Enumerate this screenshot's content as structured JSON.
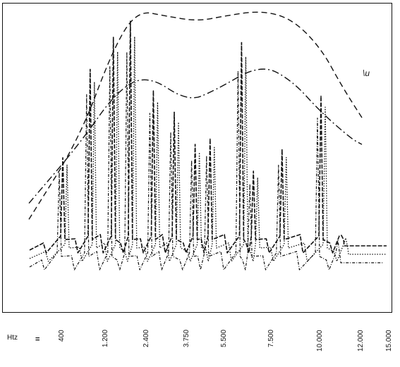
{
  "chart_data": {
    "type": "line",
    "xlabel": "",
    "ylabel": "",
    "x_axis_unit": "Htz",
    "x_axis_unit_marker": "=",
    "x_tick_labels": [
      "400",
      "1.200",
      "2.400",
      "3.750",
      "5.500",
      "7.500",
      "10.000",
      "12.000",
      "15.000"
    ],
    "x_tick_values": [
      400,
      1200,
      2400,
      3750,
      5500,
      7500,
      10000,
      12000,
      15000
    ],
    "corner_annotation": "\\u",
    "grid": false,
    "legend": "none",
    "series": [
      {
        "style": "dashed-envelope",
        "points": [
          [
            0,
            0.22
          ],
          [
            700,
            0.52
          ],
          [
            1400,
            0.86
          ],
          [
            2100,
            1.0
          ],
          [
            3000,
            0.98
          ],
          [
            4200,
            0.96
          ],
          [
            5500,
            0.98
          ],
          [
            7000,
            1.0
          ],
          [
            8500,
            0.97
          ],
          [
            10000,
            0.86
          ],
          [
            11000,
            0.72
          ],
          [
            12000,
            0.6
          ]
        ]
      },
      {
        "style": "dash-dot-envelope",
        "points": [
          [
            0,
            0.28
          ],
          [
            700,
            0.5
          ],
          [
            1500,
            0.7
          ],
          [
            2400,
            0.76
          ],
          [
            3750,
            0.66
          ],
          [
            5000,
            0.7
          ],
          [
            7000,
            0.8
          ],
          [
            8500,
            0.74
          ],
          [
            10000,
            0.62
          ],
          [
            11500,
            0.52
          ],
          [
            12000,
            0.5
          ]
        ]
      },
      {
        "style": "spectrum-peaks",
        "peaks": [
          [
            400,
            0.45
          ],
          [
            900,
            0.78
          ],
          [
            1400,
            0.9
          ],
          [
            1900,
            0.96
          ],
          [
            2600,
            0.7
          ],
          [
            3300,
            0.62
          ],
          [
            4100,
            0.5
          ],
          [
            4800,
            0.52
          ],
          [
            6200,
            0.88
          ],
          [
            6700,
            0.4
          ],
          [
            8000,
            0.48
          ],
          [
            10000,
            0.68
          ],
          [
            11000,
            0.16
          ]
        ]
      }
    ]
  }
}
